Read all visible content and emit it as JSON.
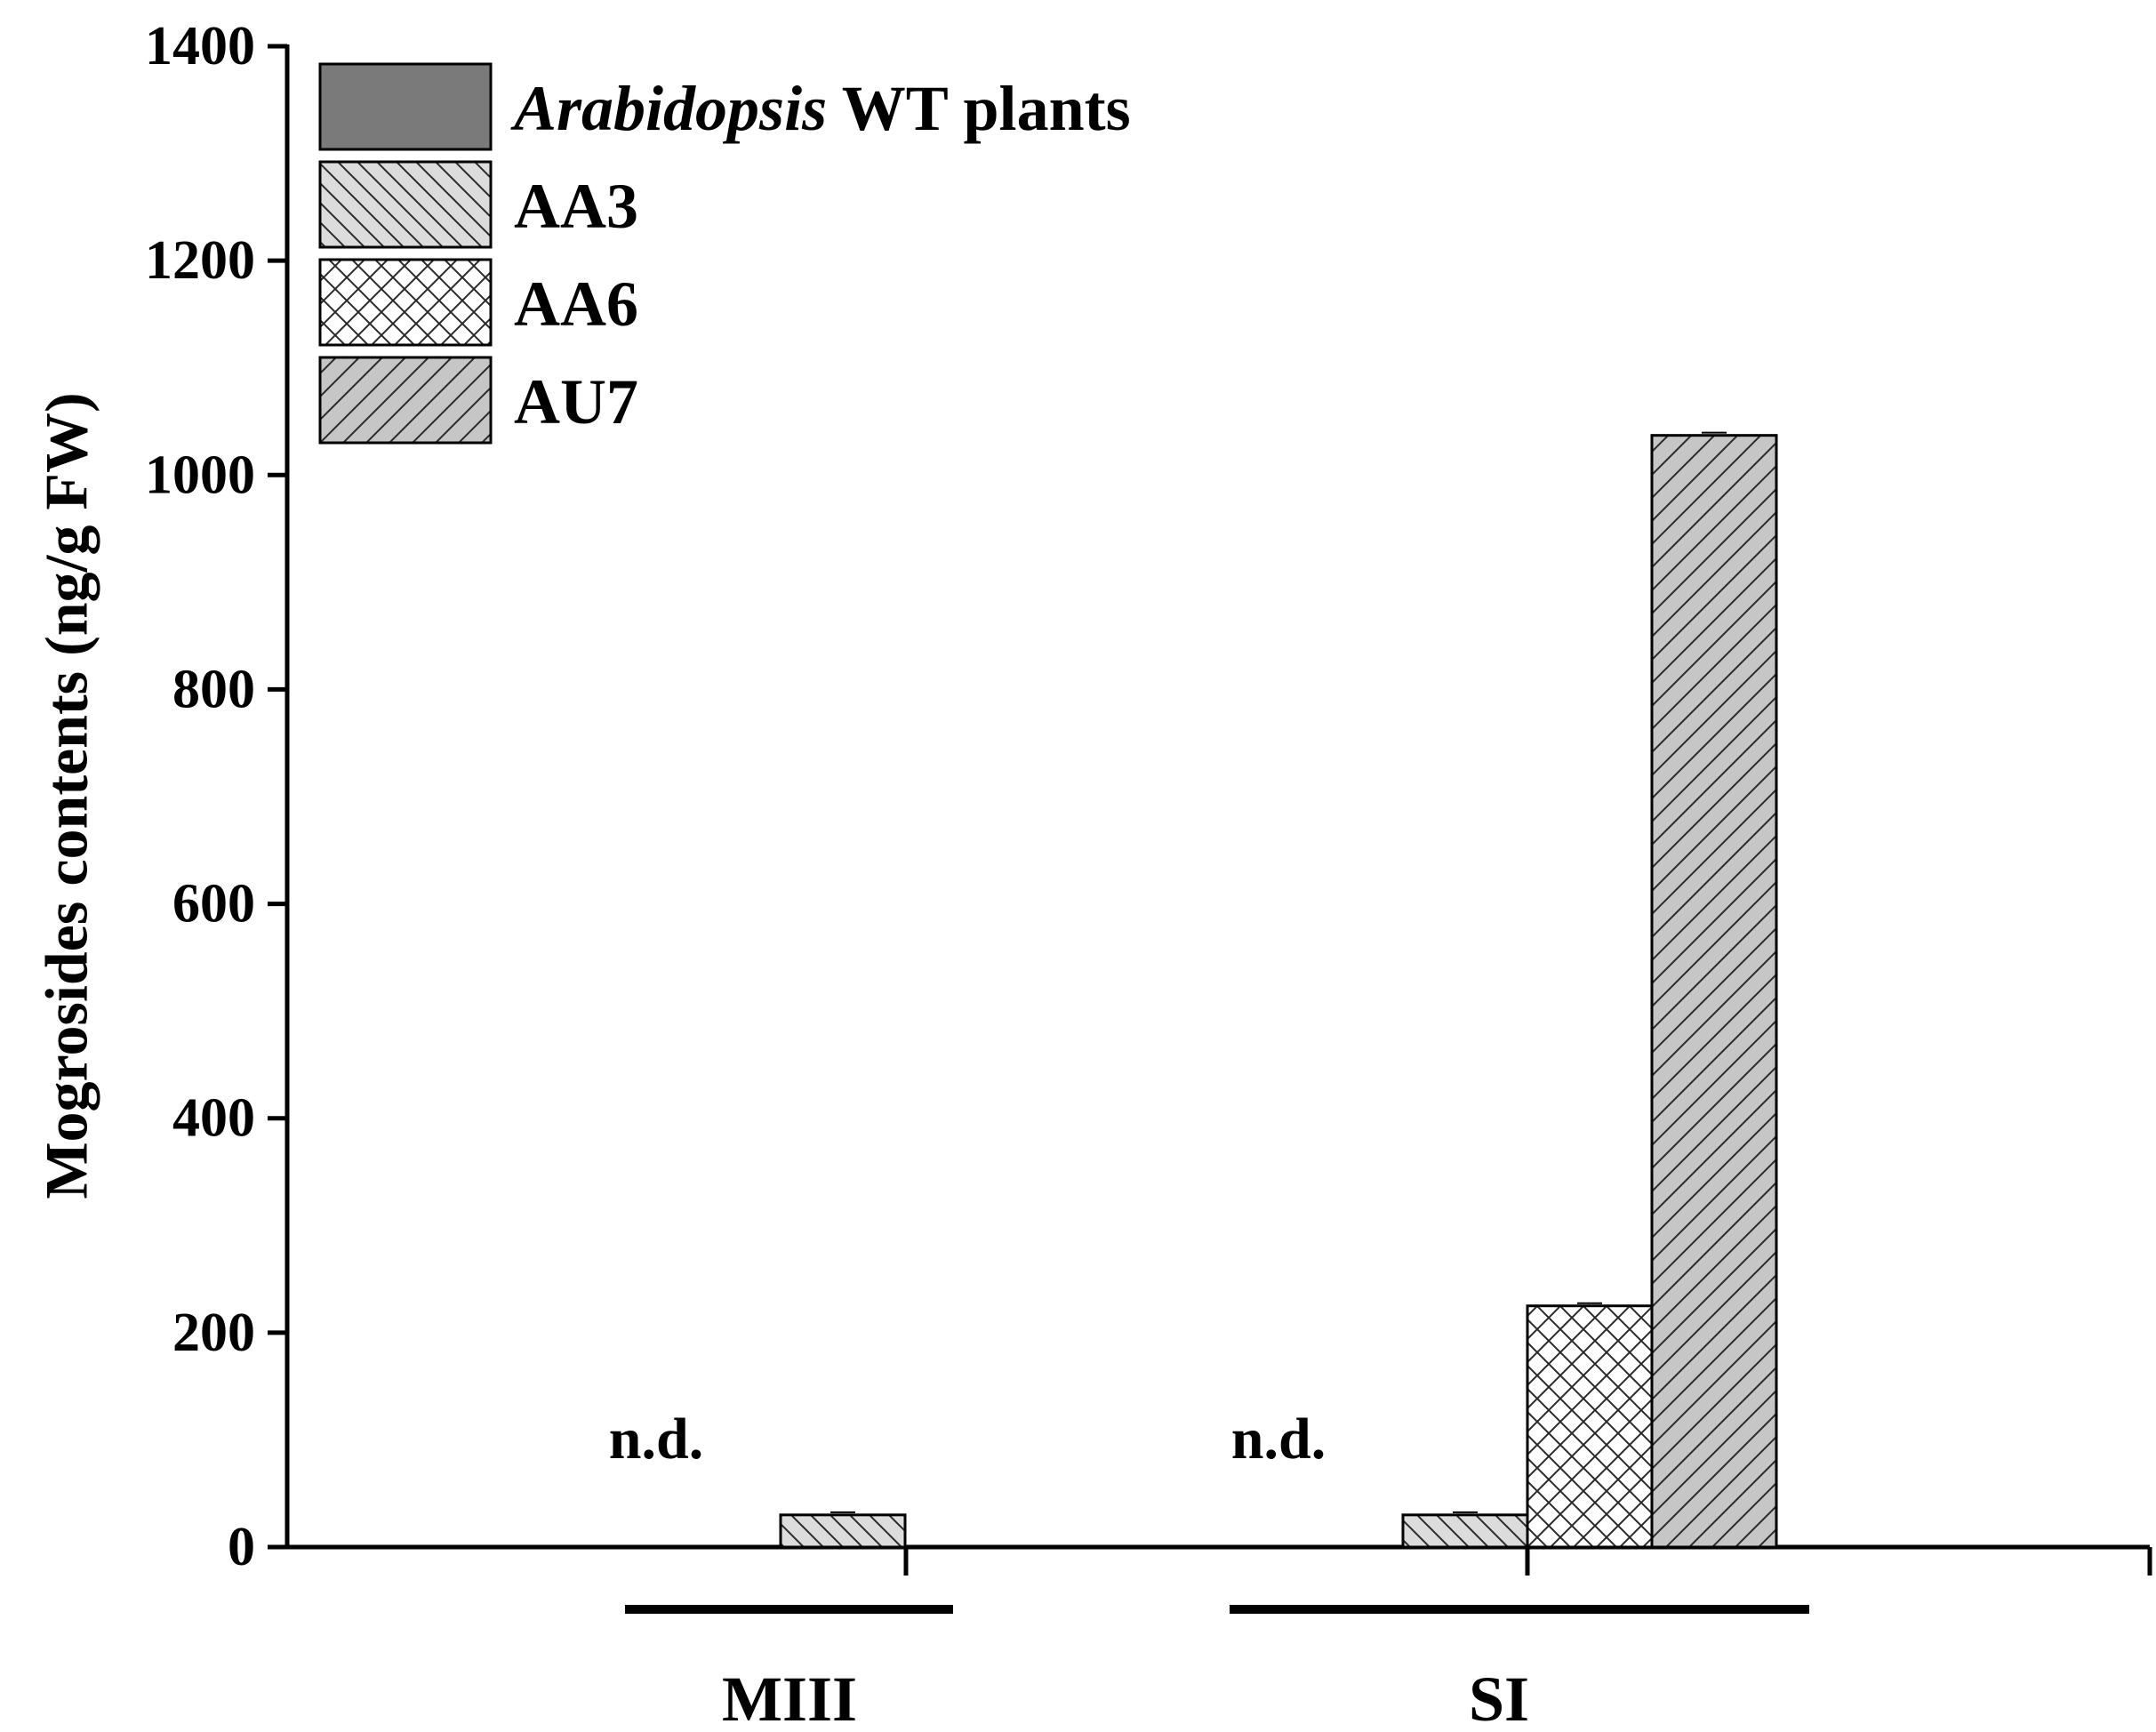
{
  "chart_data": {
    "type": "bar",
    "title": "",
    "xlabel": "",
    "ylabel": "Mogrosides contents (ng/g FW)",
    "ylim": [
      0,
      1400
    ],
    "yticks": [
      0,
      200,
      400,
      600,
      800,
      1000,
      1200,
      1400
    ],
    "grid": false,
    "legend_position": "top-left",
    "categories": [
      "MIII",
      "SI"
    ],
    "series": [
      {
        "name": "Arabidopsis WT plants",
        "name_italic": "Arabidopsis",
        "name_rest": " WT plants",
        "pattern": "solid-dark",
        "color": "#7a7a7a",
        "values": [
          0,
          0
        ],
        "labels": [
          "n.d.",
          "n.d."
        ]
      },
      {
        "name": "AA3",
        "pattern": "diag-back",
        "color": "#d9d9d9",
        "values": [
          30,
          30
        ],
        "labels": [
          "",
          ""
        ]
      },
      {
        "name": "AA6",
        "pattern": "crosshatch",
        "color": "#ffffff",
        "values": [
          null,
          225
        ],
        "labels": [
          "",
          ""
        ]
      },
      {
        "name": "AU7",
        "pattern": "diag-fwd",
        "color": "#c4c4c4",
        "values": [
          null,
          1037
        ],
        "labels": [
          "",
          ""
        ]
      }
    ]
  }
}
